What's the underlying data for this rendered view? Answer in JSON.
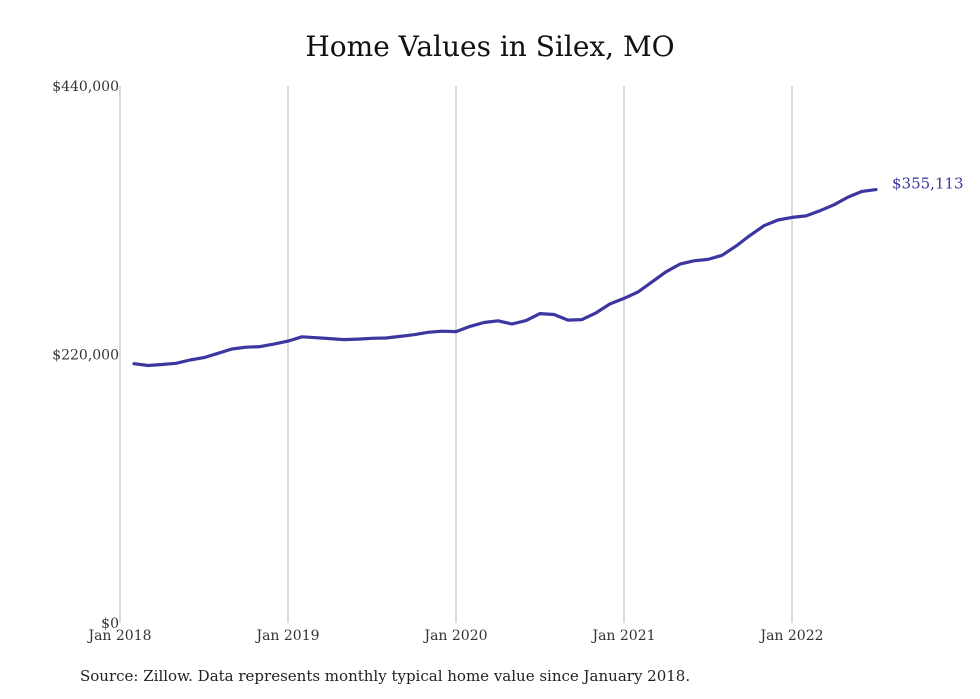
{
  "chart_data": {
    "type": "line",
    "title": "Home Values in Silex, MO",
    "xlabel": "",
    "ylabel": "",
    "ylim": [
      0,
      440000
    ],
    "y_ticks": [
      "$0",
      "$220,000",
      "$440,000"
    ],
    "y_tick_values": [
      0,
      220000,
      440000
    ],
    "x_ticks": [
      "Jan 2018",
      "Jan 2019",
      "Jan 2020",
      "Jan 2021",
      "Jan 2022"
    ],
    "x_tick_dates": [
      "2018-01",
      "2019-01",
      "2020-01",
      "2021-01",
      "2022-01"
    ],
    "grid": "vertical",
    "line_color": "#3b36a0",
    "series": [
      {
        "x": [
          "2018-02",
          "2018-03",
          "2018-04",
          "2018-05",
          "2018-06",
          "2018-07",
          "2018-08",
          "2018-09",
          "2018-10",
          "2018-11",
          "2018-12",
          "2019-01",
          "2019-02",
          "2019-03",
          "2019-04",
          "2019-05",
          "2019-06",
          "2019-07",
          "2019-08",
          "2019-09",
          "2019-10",
          "2019-11",
          "2019-12",
          "2020-01",
          "2020-02",
          "2020-03",
          "2020-04",
          "2020-05",
          "2020-06",
          "2020-07",
          "2020-08",
          "2020-09",
          "2020-10",
          "2020-11",
          "2020-12",
          "2021-01",
          "2021-02",
          "2021-03",
          "2021-04",
          "2021-05",
          "2021-06",
          "2021-07",
          "2021-08",
          "2021-09",
          "2021-10",
          "2021-11",
          "2021-12",
          "2022-01",
          "2022-02",
          "2022-03",
          "2022-04",
          "2022-05",
          "2022-06",
          "2022-07"
        ],
        "values": [
          212500,
          211000,
          211800,
          212800,
          215500,
          217500,
          221000,
          224500,
          226000,
          226500,
          228500,
          231000,
          234500,
          233800,
          233000,
          232200,
          232600,
          233300,
          233500,
          234800,
          236200,
          238200,
          239100,
          238800,
          243000,
          246200,
          247600,
          245000,
          247800,
          253500,
          252800,
          248200,
          248600,
          254100,
          261500,
          266000,
          271200,
          279500,
          287800,
          294100,
          296800,
          297900,
          301300,
          308800,
          317600,
          325500,
          330200,
          332300,
          333600,
          337800,
          342700,
          349000,
          353600,
          355113
        ]
      }
    ],
    "end_label": "$355,113"
  },
  "footer": {
    "source": "Source: Zillow. Data represents monthly typical home value since January 2018."
  }
}
